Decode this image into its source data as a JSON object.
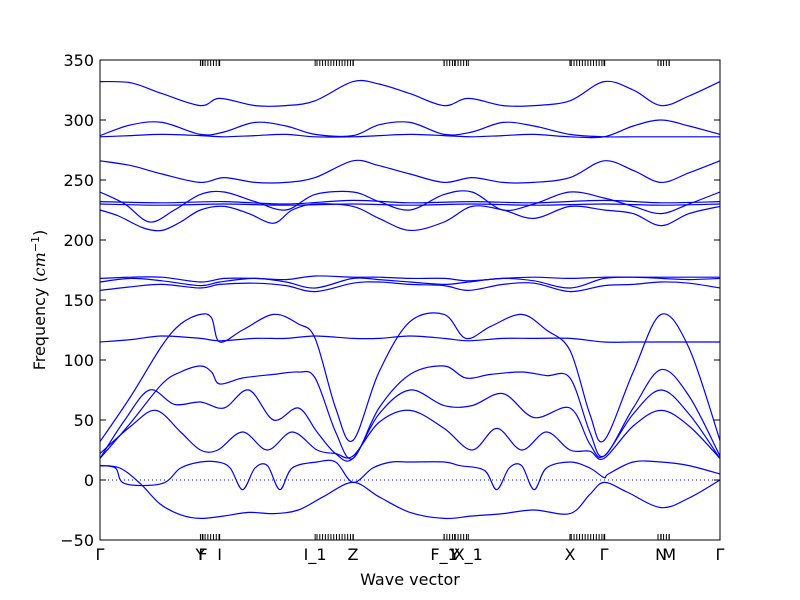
{
  "chart_data": {
    "type": "line",
    "xlabel": "Wave vector",
    "ylabel_text": "Frequency (",
    "ylabel_unit_base": "cm",
    "ylabel_unit_exp": "−1",
    "ylabel_close": ")",
    "ylim": [
      -50,
      350
    ],
    "yticks": [
      -50,
      0,
      50,
      100,
      150,
      200,
      250,
      300,
      350
    ],
    "ytick_labels": [
      "−50",
      "0",
      "50",
      "100",
      "150",
      "200",
      "250",
      "300",
      "350"
    ],
    "xlim": [
      0,
      1
    ],
    "kpoints": [
      {
        "x": 0.0,
        "label": "Γ"
      },
      {
        "x": 0.162,
        "label": "Y"
      },
      {
        "x": 0.166,
        "label": "F"
      },
      {
        "x": 0.193,
        "label": "I"
      },
      {
        "x": 0.347,
        "label": "I_1"
      },
      {
        "x": 0.408,
        "label": "Z"
      },
      {
        "x": 0.555,
        "label": "F_1"
      },
      {
        "x": 0.572,
        "label": "Y"
      },
      {
        "x": 0.594,
        "label": "X_1"
      },
      {
        "x": 0.758,
        "label": "X"
      },
      {
        "x": 0.813,
        "label": "Γ"
      },
      {
        "x": 0.905,
        "label": "N"
      },
      {
        "x": 0.918,
        "label": "M"
      },
      {
        "x": 1.0,
        "label": "Γ"
      }
    ],
    "zero_line": true,
    "line_color": "#0000ff",
    "series": [
      {
        "x": [
          0,
          0.032,
          0.065,
          0.097,
          0.13,
          0.162,
          0.2,
          0.24,
          0.28,
          0.32,
          0.36,
          0.408,
          0.45,
          0.5,
          0.555,
          0.6,
          0.65,
          0.7,
          0.758,
          0.79,
          0.813,
          0.85,
          0.905,
          0.95,
          1
        ],
        "y": [
          12,
          10,
          -3,
          -20,
          -29,
          -32,
          -30,
          -27,
          -28,
          -25,
          -14,
          -2,
          -14,
          -27,
          -32,
          -30,
          -28,
          -25,
          -28,
          -12,
          -2,
          -10,
          -23,
          -15,
          0
        ]
      },
      {
        "x": [
          0,
          0.025,
          0.04,
          0.1,
          0.13,
          0.162,
          0.19,
          0.21,
          0.23,
          0.25,
          0.27,
          0.29,
          0.31,
          0.35,
          0.38,
          0.408,
          0.44,
          0.47,
          0.5,
          0.555,
          0.58,
          0.62,
          0.64,
          0.66,
          0.68,
          0.7,
          0.72,
          0.758,
          0.79,
          0.813,
          0.82,
          0.86,
          0.905,
          0.95,
          1
        ],
        "y": [
          12,
          10,
          -3,
          -3,
          10,
          15,
          15,
          10,
          -8,
          10,
          12,
          -8,
          10,
          15,
          15,
          -2,
          10,
          15,
          15,
          15,
          12,
          8,
          -8,
          10,
          12,
          -8,
          10,
          15,
          10,
          2,
          5,
          15,
          15,
          12,
          5
        ]
      },
      {
        "x": [
          0,
          0.05,
          0.09,
          0.13,
          0.162,
          0.19,
          0.23,
          0.27,
          0.31,
          0.35,
          0.38,
          0.408,
          0.45,
          0.5,
          0.555,
          0.6,
          0.64,
          0.68,
          0.72,
          0.758,
          0.79,
          0.813,
          0.86,
          0.905,
          0.95,
          1
        ],
        "y": [
          22,
          45,
          58,
          40,
          25,
          25,
          40,
          25,
          40,
          25,
          22,
          20,
          48,
          58,
          43,
          25,
          43,
          25,
          40,
          25,
          24,
          18,
          45,
          58,
          45,
          18
        ]
      },
      {
        "x": [
          0,
          0.04,
          0.08,
          0.12,
          0.162,
          0.2,
          0.24,
          0.28,
          0.32,
          0.35,
          0.38,
          0.408,
          0.45,
          0.5,
          0.555,
          0.6,
          0.65,
          0.7,
          0.758,
          0.79,
          0.813,
          0.86,
          0.905,
          0.95,
          1
        ],
        "y": [
          18,
          50,
          75,
          63,
          65,
          60,
          75,
          50,
          60,
          40,
          22,
          18,
          55,
          75,
          62,
          62,
          72,
          52,
          60,
          30,
          20,
          55,
          75,
          55,
          18
        ]
      },
      {
        "x": [
          0,
          0.05,
          0.1,
          0.13,
          0.162,
          0.18,
          0.193,
          0.23,
          0.28,
          0.32,
          0.347,
          0.38,
          0.408,
          0.45,
          0.5,
          0.555,
          0.59,
          0.63,
          0.68,
          0.72,
          0.758,
          0.79,
          0.813,
          0.86,
          0.905,
          0.95,
          1
        ],
        "y": [
          18,
          48,
          80,
          90,
          95,
          90,
          80,
          85,
          88,
          90,
          85,
          40,
          18,
          60,
          88,
          95,
          85,
          88,
          90,
          87,
          85,
          40,
          20,
          60,
          92,
          70,
          20
        ]
      },
      {
        "x": [
          0,
          0.05,
          0.1,
          0.13,
          0.162,
          0.18,
          0.193,
          0.23,
          0.28,
          0.32,
          0.347,
          0.38,
          0.408,
          0.45,
          0.5,
          0.555,
          0.59,
          0.63,
          0.68,
          0.72,
          0.758,
          0.79,
          0.813,
          0.86,
          0.905,
          0.95,
          1
        ],
        "y": [
          32,
          70,
          112,
          130,
          138,
          135,
          115,
          125,
          138,
          130,
          118,
          60,
          33,
          90,
          132,
          138,
          118,
          128,
          138,
          125,
          108,
          55,
          33,
          90,
          138,
          110,
          33
        ]
      },
      {
        "x": [
          0,
          0.05,
          0.1,
          0.162,
          0.193,
          0.25,
          0.3,
          0.347,
          0.408,
          0.45,
          0.5,
          0.555,
          0.594,
          0.65,
          0.7,
          0.758,
          0.813,
          0.86,
          0.905,
          0.95,
          1
        ],
        "y": [
          115,
          117,
          120,
          118,
          116,
          118,
          118,
          120,
          118,
          118,
          120,
          118,
          116,
          118,
          118,
          118,
          115,
          115,
          115,
          115,
          115
        ]
      },
      {
        "x": [
          0,
          0.05,
          0.1,
          0.162,
          0.193,
          0.25,
          0.3,
          0.347,
          0.408,
          0.45,
          0.5,
          0.555,
          0.594,
          0.65,
          0.7,
          0.758,
          0.813,
          0.86,
          0.905,
          0.95,
          1
        ],
        "y": [
          158,
          161,
          163,
          160,
          163,
          164,
          162,
          157,
          164,
          165,
          163,
          162,
          158,
          163,
          164,
          157,
          162,
          163,
          165,
          164,
          160
        ]
      },
      {
        "x": [
          0,
          0.05,
          0.1,
          0.162,
          0.193,
          0.25,
          0.3,
          0.347,
          0.408,
          0.45,
          0.5,
          0.555,
          0.594,
          0.65,
          0.7,
          0.758,
          0.813,
          0.86,
          0.905,
          0.95,
          1
        ],
        "y": [
          165,
          168,
          166,
          162,
          165,
          168,
          165,
          160,
          168,
          167,
          165,
          163,
          165,
          168,
          166,
          160,
          168,
          169,
          168,
          167,
          168
        ]
      },
      {
        "x": [
          0,
          0.05,
          0.1,
          0.162,
          0.2,
          0.25,
          0.3,
          0.347,
          0.408,
          0.45,
          0.5,
          0.555,
          0.594,
          0.65,
          0.7,
          0.758,
          0.813,
          0.86,
          0.905,
          0.95,
          1
        ],
        "y": [
          168,
          169,
          169,
          165,
          168,
          168,
          167,
          170,
          169,
          169,
          168,
          168,
          166,
          168,
          169,
          168,
          169,
          169,
          169,
          169,
          169
        ]
      },
      {
        "x": [
          0,
          0.03,
          0.07,
          0.1,
          0.13,
          0.162,
          0.2,
          0.24,
          0.28,
          0.31,
          0.347,
          0.408,
          0.45,
          0.5,
          0.555,
          0.6,
          0.65,
          0.7,
          0.758,
          0.813,
          0.86,
          0.905,
          0.95,
          1
        ],
        "y": [
          225,
          220,
          210,
          208,
          215,
          225,
          228,
          222,
          214,
          225,
          230,
          228,
          218,
          208,
          215,
          228,
          225,
          218,
          228,
          225,
          222,
          212,
          222,
          228
        ]
      },
      {
        "x": [
          0,
          0.04,
          0.08,
          0.12,
          0.162,
          0.2,
          0.25,
          0.3,
          0.347,
          0.408,
          0.45,
          0.5,
          0.555,
          0.6,
          0.65,
          0.7,
          0.758,
          0.813,
          0.86,
          0.905,
          0.95,
          1
        ],
        "y": [
          240,
          230,
          215,
          225,
          238,
          240,
          232,
          225,
          238,
          240,
          232,
          225,
          238,
          240,
          225,
          230,
          240,
          235,
          228,
          222,
          230,
          240
        ]
      },
      {
        "x": [
          0,
          0.1,
          0.2,
          0.3,
          0.408,
          0.5,
          0.6,
          0.7,
          0.813,
          0.905,
          1
        ],
        "y": [
          230,
          229,
          230,
          229,
          230,
          229,
          230,
          229,
          230,
          229,
          230
        ]
      },
      {
        "x": [
          0,
          0.1,
          0.2,
          0.3,
          0.408,
          0.5,
          0.6,
          0.7,
          0.813,
          0.905,
          1
        ],
        "y": [
          232,
          231,
          232,
          230,
          233,
          231,
          232,
          231,
          233,
          231,
          232
        ]
      },
      {
        "x": [
          0,
          0.05,
          0.1,
          0.162,
          0.2,
          0.25,
          0.3,
          0.347,
          0.408,
          0.45,
          0.5,
          0.555,
          0.6,
          0.65,
          0.7,
          0.758,
          0.813,
          0.86,
          0.905,
          0.95,
          1
        ],
        "y": [
          266,
          262,
          255,
          248,
          252,
          248,
          248,
          252,
          266,
          262,
          255,
          248,
          252,
          248,
          248,
          252,
          266,
          258,
          248,
          256,
          266
        ]
      },
      {
        "x": [
          0,
          0.05,
          0.1,
          0.162,
          0.2,
          0.25,
          0.3,
          0.347,
          0.408,
          0.45,
          0.5,
          0.555,
          0.6,
          0.65,
          0.7,
          0.758,
          0.813,
          0.86,
          0.905,
          0.95,
          1
        ],
        "y": [
          287,
          296,
          298,
          288,
          290,
          298,
          295,
          288,
          287,
          296,
          298,
          288,
          290,
          298,
          295,
          288,
          286,
          286,
          286,
          286,
          286
        ]
      },
      {
        "x": [
          0,
          0.05,
          0.1,
          0.162,
          0.2,
          0.25,
          0.3,
          0.347,
          0.408,
          0.45,
          0.5,
          0.555,
          0.6,
          0.65,
          0.7,
          0.758,
          0.813,
          0.86,
          0.905,
          0.95,
          1
        ],
        "y": [
          286,
          287,
          288,
          287,
          286,
          287,
          288,
          286,
          286,
          287,
          288,
          287,
          286,
          287,
          288,
          286,
          286,
          295,
          300,
          295,
          288
        ]
      },
      {
        "x": [
          0,
          0.05,
          0.1,
          0.162,
          0.193,
          0.25,
          0.3,
          0.347,
          0.408,
          0.45,
          0.5,
          0.555,
          0.594,
          0.65,
          0.7,
          0.758,
          0.813,
          0.86,
          0.905,
          0.95,
          1
        ],
        "y": [
          332,
          331,
          322,
          312,
          318,
          312,
          312,
          316,
          332,
          330,
          322,
          312,
          318,
          312,
          312,
          316,
          332,
          325,
          312,
          320,
          332
        ]
      }
    ]
  }
}
